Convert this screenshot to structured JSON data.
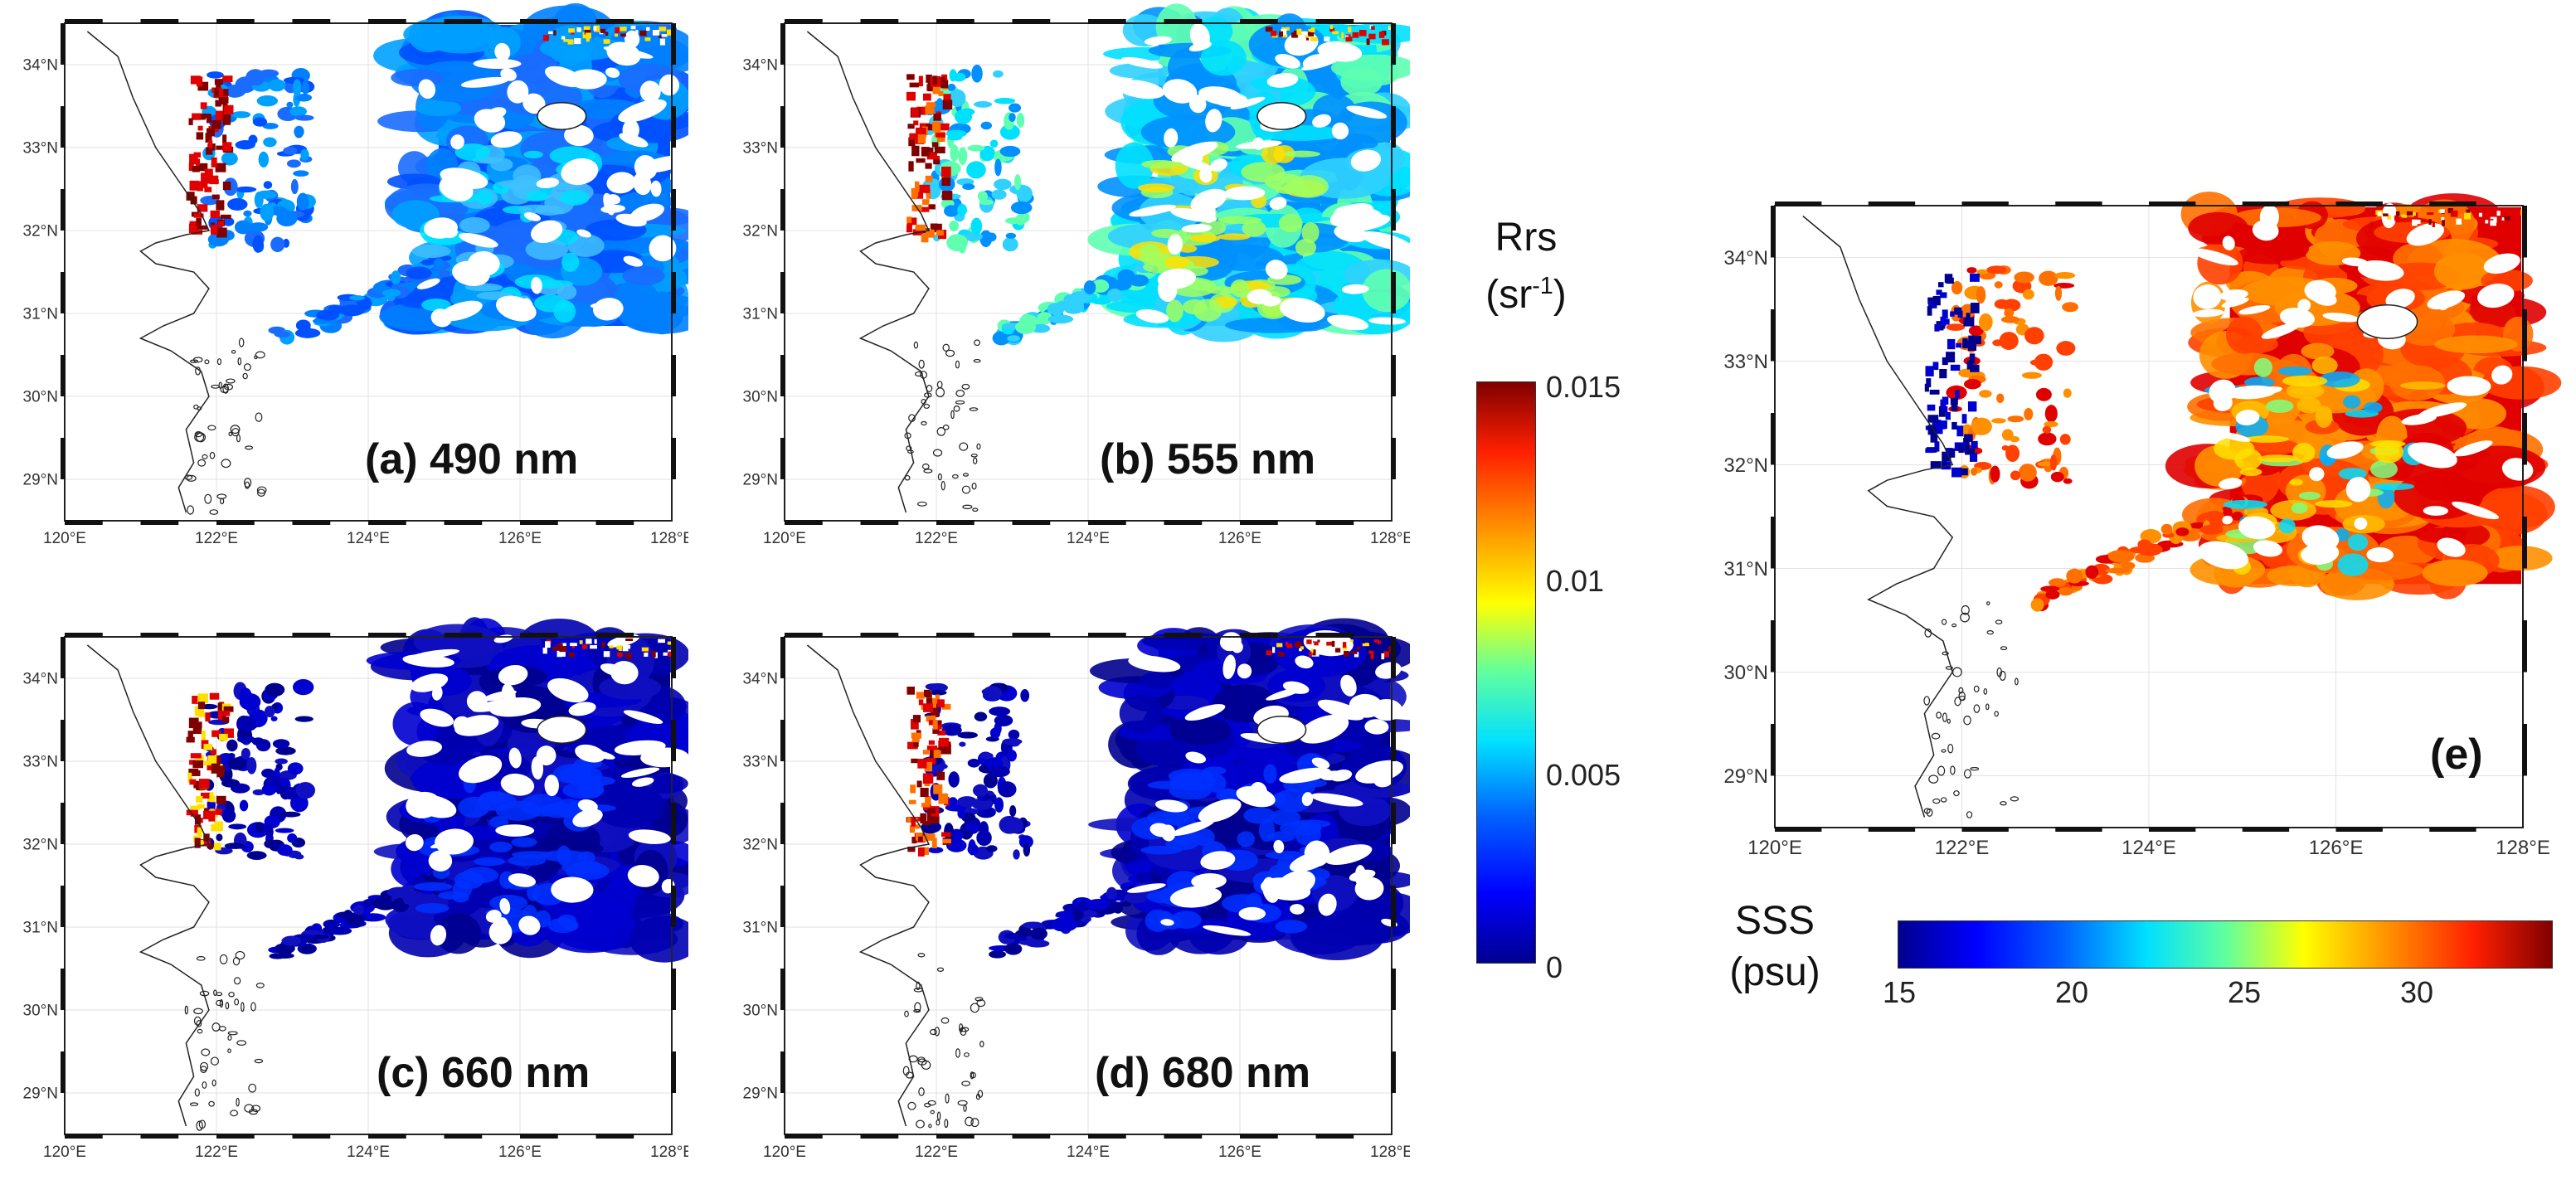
{
  "panels": [
    {
      "label": "(a) 490 nm",
      "variable": "Rrs",
      "wavelength_nm": 490
    },
    {
      "label": "(b) 555 nm",
      "variable": "Rrs",
      "wavelength_nm": 555
    },
    {
      "label": "(c) 660 nm",
      "variable": "Rrs",
      "wavelength_nm": 660
    },
    {
      "label": "(d) 680 nm",
      "variable": "Rrs",
      "wavelength_nm": 680
    },
    {
      "label": "(e)",
      "variable": "SSS"
    }
  ],
  "axes": {
    "lon_ticks": [
      "120°E",
      "122°E",
      "124°E",
      "126°E",
      "128°E"
    ],
    "lat_ticks": [
      "34°N",
      "33°N",
      "32°N",
      "31°N",
      "30°N",
      "29°N"
    ],
    "lon_range": [
      120,
      128
    ],
    "lat_range": [
      28.5,
      34.5
    ]
  },
  "rrs_colorbar": {
    "title_line1": "Rrs",
    "title_line2_prefix": "(sr",
    "title_line2_sup": "-1",
    "title_line2_suffix": ")",
    "ticks": [
      "0.015",
      "0.01",
      "0.005",
      "0"
    ],
    "range": [
      0,
      0.015
    ],
    "colormap": "jet"
  },
  "sss_colorbar": {
    "title_line1": "SSS",
    "title_line2": "(psu)",
    "ticks": [
      "15",
      "20",
      "25",
      "30"
    ],
    "range": [
      15,
      34
    ],
    "colormap": "jet"
  },
  "colors": {
    "jet_dark_blue": "#00008f",
    "jet_blue": "#0050ff",
    "jet_cyan": "#00e0ff",
    "jet_yellow": "#ffe000",
    "jet_orange": "#ff7000",
    "jet_red": "#e00000",
    "jet_dark_red": "#800000"
  }
}
